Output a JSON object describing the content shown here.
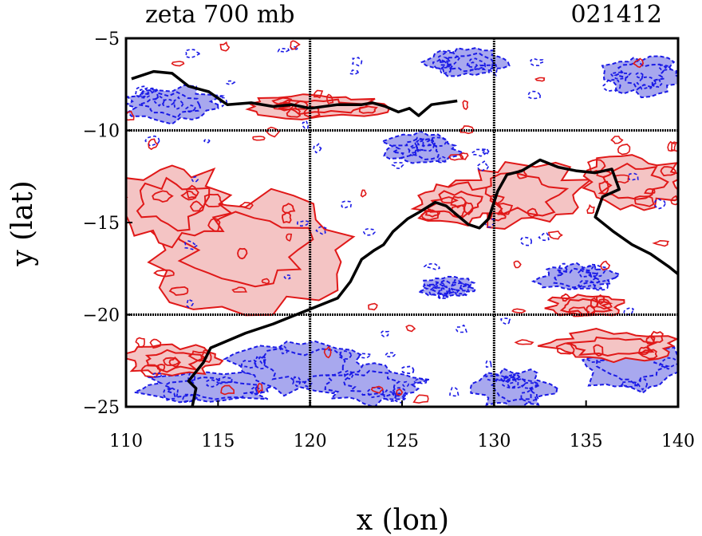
{
  "chart_data": {
    "type": "contour",
    "title": "zeta 700 mb",
    "timestamp": "021412",
    "xlabel": "x (lon)",
    "ylabel": "y (lat)",
    "xlim": [
      110,
      140
    ],
    "ylim": [
      -25,
      -5
    ],
    "xticks": [
      "110",
      "115",
      "120",
      "125",
      "130",
      "135",
      "140"
    ],
    "yticks": [
      "-5",
      "-10",
      "-15",
      "-20",
      "-25"
    ],
    "grid_lon": [
      120,
      130
    ],
    "grid_lat": [
      -10,
      -20
    ],
    "colors": {
      "positive_fill": "#f4c4c4",
      "positive_line": "#e01818",
      "negative_fill": "#a8a8ee",
      "negative_line": "#1a1ae6",
      "coast": "#000000"
    },
    "coastline": [
      [
        113.6,
        -25
      ],
      [
        113.8,
        -24.0
      ],
      [
        113.4,
        -23.6
      ],
      [
        114.2,
        -22.6
      ],
      [
        114.6,
        -21.8
      ],
      [
        116.5,
        -21.0
      ],
      [
        118.0,
        -20.5
      ],
      [
        120.0,
        -19.7
      ],
      [
        121.5,
        -19.1
      ],
      [
        122.2,
        -18.2
      ],
      [
        122.8,
        -17.0
      ],
      [
        123.5,
        -16.5
      ],
      [
        124.0,
        -16.2
      ],
      [
        124.5,
        -15.5
      ],
      [
        125.3,
        -14.8
      ],
      [
        126.0,
        -14.4
      ],
      [
        126.8,
        -13.9
      ],
      [
        127.4,
        -14.1
      ],
      [
        128.0,
        -14.6
      ],
      [
        128.6,
        -15.1
      ],
      [
        129.2,
        -15.3
      ],
      [
        129.7,
        -14.8
      ],
      [
        130.2,
        -13.3
      ],
      [
        130.7,
        -12.4
      ],
      [
        131.5,
        -12.2
      ],
      [
        132.5,
        -11.6
      ],
      [
        133.5,
        -12.0
      ],
      [
        134.5,
        -12.2
      ],
      [
        135.5,
        -12.3
      ],
      [
        136.4,
        -12.1
      ],
      [
        136.8,
        -13.2
      ],
      [
        135.9,
        -13.6
      ],
      [
        135.5,
        -14.7
      ],
      [
        136.5,
        -15.5
      ],
      [
        137.5,
        -16.2
      ],
      [
        138.5,
        -16.7
      ],
      [
        139.5,
        -17.4
      ],
      [
        140.0,
        -17.8
      ]
    ],
    "coastline_north": [
      [
        110.3,
        -7.2
      ],
      [
        111.5,
        -6.8
      ],
      [
        112.5,
        -6.9
      ],
      [
        113.4,
        -7.6
      ],
      [
        114.5,
        -7.9
      ],
      [
        115.5,
        -8.6
      ],
      [
        116.8,
        -8.5
      ],
      [
        118.0,
        -8.7
      ],
      [
        119.0,
        -8.6
      ],
      [
        120.0,
        -8.8
      ],
      [
        121.5,
        -8.6
      ],
      [
        122.8,
        -8.6
      ],
      [
        123.4,
        -8.5
      ],
      [
        124.1,
        -8.7
      ],
      [
        124.8,
        -9.0
      ],
      [
        125.4,
        -8.8
      ],
      [
        125.9,
        -9.2
      ],
      [
        126.6,
        -8.6
      ],
      [
        127.3,
        -8.5
      ],
      [
        128.0,
        -8.4
      ]
    ],
    "positive_regions": [
      {
        "center": [
          116.5,
          -16.5
        ],
        "rx": 5.5,
        "ry": 3.0
      },
      {
        "center": [
          112.5,
          -14.0
        ],
        "rx": 3.0,
        "ry": 2.0
      },
      {
        "center": [
          131.5,
          -13.5
        ],
        "rx": 3.5,
        "ry": 1.6
      },
      {
        "center": [
          137.5,
          -12.8
        ],
        "rx": 2.6,
        "ry": 1.4
      },
      {
        "center": [
          128.0,
          -14.0
        ],
        "rx": 2.2,
        "ry": 1.0
      },
      {
        "center": [
          135.0,
          -19.5
        ],
        "rx": 2.0,
        "ry": 0.6
      },
      {
        "center": [
          136.5,
          -21.7
        ],
        "rx": 3.5,
        "ry": 0.8
      },
      {
        "center": [
          120.5,
          -8.7
        ],
        "rx": 3.5,
        "ry": 0.6
      },
      {
        "center": [
          112.5,
          -22.5
        ],
        "rx": 2.5,
        "ry": 0.8
      }
    ],
    "negative_regions": [
      {
        "center": [
          112.5,
          -8.6
        ],
        "rx": 2.5,
        "ry": 0.9
      },
      {
        "center": [
          114.5,
          -24.0
        ],
        "rx": 3.5,
        "ry": 0.8
      },
      {
        "center": [
          119.5,
          -22.8
        ],
        "rx": 3.5,
        "ry": 1.4
      },
      {
        "center": [
          123.5,
          -23.8
        ],
        "rx": 2.5,
        "ry": 1.0
      },
      {
        "center": [
          131.0,
          -24.0
        ],
        "rx": 2.0,
        "ry": 1.0
      },
      {
        "center": [
          137.5,
          -22.8
        ],
        "rx": 2.5,
        "ry": 1.4
      },
      {
        "center": [
          138.0,
          -7.0
        ],
        "rx": 2.0,
        "ry": 1.0
      },
      {
        "center": [
          128.5,
          -6.3
        ],
        "rx": 2.0,
        "ry": 0.7
      },
      {
        "center": [
          126.0,
          -11.0
        ],
        "rx": 2.0,
        "ry": 0.8
      },
      {
        "center": [
          134.5,
          -18.0
        ],
        "rx": 2.0,
        "ry": 0.7
      },
      {
        "center": [
          127.5,
          -18.5
        ],
        "rx": 1.5,
        "ry": 0.5
      }
    ]
  }
}
